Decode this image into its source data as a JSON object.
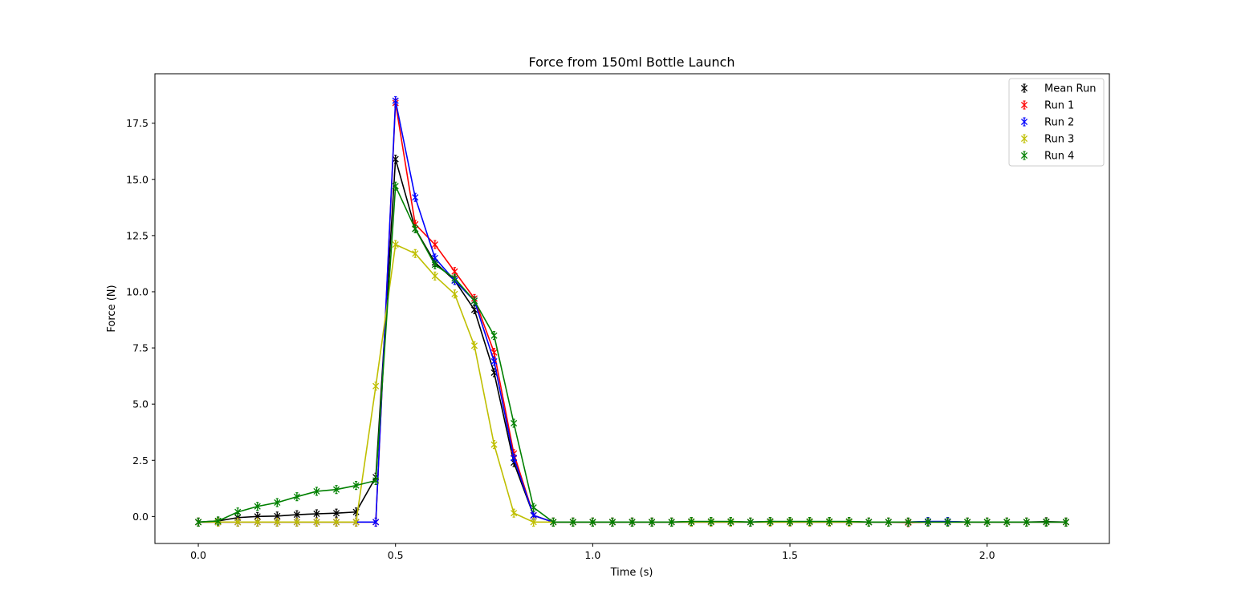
{
  "chart_data": {
    "type": "line",
    "title": "Force from 150ml Bottle Launch",
    "xlabel": "Time (s)",
    "ylabel": "Force (N)",
    "xlim": [
      -0.11,
      2.31
    ],
    "ylim": [
      -1.2,
      19.7
    ],
    "xticks": [
      0.0,
      0.5,
      1.0,
      1.5,
      2.0
    ],
    "xtick_labels": [
      "0.0",
      "0.5",
      "1.0",
      "1.5",
      "2.0"
    ],
    "yticks": [
      0.0,
      2.5,
      5.0,
      7.5,
      10.0,
      12.5,
      15.0,
      17.5
    ],
    "ytick_labels": [
      "0.0",
      "2.5",
      "5.0",
      "7.5",
      "10.0",
      "12.5",
      "15.0",
      "17.5"
    ],
    "grid": false,
    "legend_position": "top-right",
    "x": [
      0.0,
      0.05,
      0.1,
      0.15,
      0.2,
      0.25,
      0.3,
      0.35,
      0.4,
      0.45,
      0.5,
      0.55,
      0.6,
      0.65,
      0.7,
      0.75,
      0.8,
      0.85,
      0.9,
      0.95,
      1.0,
      1.05,
      1.1,
      1.15,
      1.2,
      1.25,
      1.3,
      1.35,
      1.4,
      1.45,
      1.5,
      1.55,
      1.6,
      1.65,
      1.7,
      1.75,
      1.8,
      1.85,
      1.9,
      1.95,
      2.0,
      2.05,
      2.1,
      2.15,
      2.2
    ],
    "series": [
      {
        "name": "Mean Run",
        "color": "#000000",
        "values": [
          -0.25,
          -0.2,
          -0.05,
          0.0,
          0.02,
          0.08,
          0.12,
          0.15,
          0.2,
          1.75,
          15.9,
          12.8,
          11.3,
          10.5,
          9.2,
          6.4,
          2.4,
          0.05,
          -0.25,
          -0.25,
          -0.25,
          -0.25,
          -0.25,
          -0.25,
          -0.25,
          -0.23,
          -0.23,
          -0.23,
          -0.25,
          -0.23,
          -0.23,
          -0.23,
          -0.23,
          -0.23,
          -0.25,
          -0.25,
          -0.25,
          -0.23,
          -0.23,
          -0.25,
          -0.25,
          -0.25,
          -0.25,
          -0.23,
          -0.25
        ]
      },
      {
        "name": "Run 1",
        "color": "#ff0000",
        "values": [
          -0.25,
          -0.25,
          -0.25,
          -0.25,
          -0.25,
          -0.25,
          -0.25,
          -0.25,
          -0.25,
          -0.25,
          18.4,
          13.0,
          12.1,
          10.9,
          9.7,
          7.3,
          2.8,
          0.05,
          -0.25,
          -0.25,
          -0.25,
          -0.25,
          -0.25,
          -0.25,
          -0.25,
          -0.25,
          -0.25,
          -0.25,
          -0.25,
          -0.25,
          -0.25,
          -0.25,
          -0.25,
          -0.25,
          -0.25,
          -0.25,
          -0.27,
          -0.25,
          -0.25,
          -0.25,
          -0.25,
          -0.25,
          -0.25,
          -0.25,
          -0.25
        ]
      },
      {
        "name": "Run 2",
        "color": "#0000ff",
        "values": [
          -0.25,
          -0.25,
          -0.25,
          -0.25,
          -0.25,
          -0.25,
          -0.25,
          -0.25,
          -0.25,
          -0.25,
          18.5,
          14.2,
          11.5,
          10.5,
          9.6,
          6.9,
          2.6,
          0.05,
          -0.25,
          -0.25,
          -0.25,
          -0.25,
          -0.25,
          -0.25,
          -0.25,
          -0.25,
          -0.25,
          -0.25,
          -0.25,
          -0.22,
          -0.25,
          -0.25,
          -0.25,
          -0.25,
          -0.25,
          -0.25,
          -0.25,
          -0.22,
          -0.22,
          -0.25,
          -0.25,
          -0.25,
          -0.25,
          -0.25,
          -0.25
        ]
      },
      {
        "name": "Run 3",
        "color": "#bfbf00",
        "values": [
          -0.25,
          -0.25,
          -0.25,
          -0.25,
          -0.25,
          -0.25,
          -0.25,
          -0.25,
          -0.25,
          5.8,
          12.1,
          11.7,
          10.7,
          9.9,
          7.6,
          3.2,
          0.15,
          -0.25,
          -0.25,
          -0.25,
          -0.25,
          -0.25,
          -0.25,
          -0.25,
          -0.25,
          -0.25,
          -0.25,
          -0.25,
          -0.25,
          -0.25,
          -0.25,
          -0.25,
          -0.25,
          -0.25,
          -0.25,
          -0.25,
          -0.25,
          -0.25,
          -0.25,
          -0.25,
          -0.25,
          -0.25,
          -0.25,
          -0.25,
          -0.25
        ]
      },
      {
        "name": "Run 4",
        "color": "#008000",
        "values": [
          -0.25,
          -0.2,
          0.2,
          0.45,
          0.62,
          0.88,
          1.12,
          1.2,
          1.38,
          1.6,
          14.7,
          12.8,
          11.2,
          10.6,
          9.6,
          8.05,
          4.15,
          0.4,
          -0.25,
          -0.25,
          -0.25,
          -0.25,
          -0.25,
          -0.25,
          -0.25,
          -0.22,
          -0.22,
          -0.22,
          -0.25,
          -0.22,
          -0.22,
          -0.22,
          -0.22,
          -0.22,
          -0.25,
          -0.25,
          -0.25,
          -0.25,
          -0.25,
          -0.25,
          -0.25,
          -0.25,
          -0.25,
          -0.25,
          -0.25
        ]
      }
    ]
  }
}
